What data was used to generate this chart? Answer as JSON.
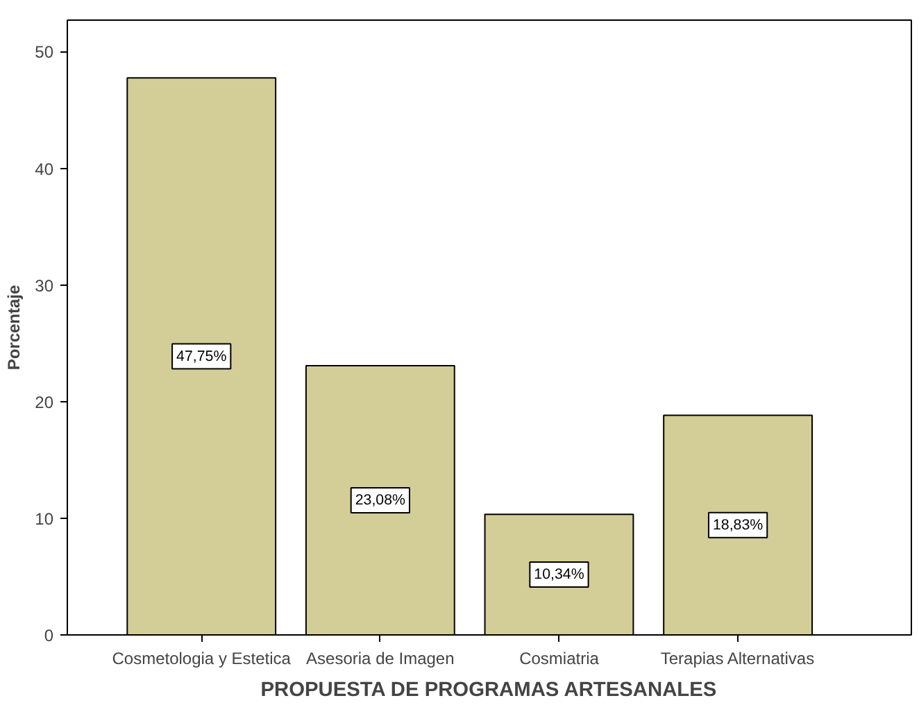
{
  "chart_data": {
    "type": "bar",
    "xlabel": "PROPUESTA DE PROGRAMAS ARTESANALES",
    "ylabel": "Porcentaje",
    "categories": [
      "Cosmetologia y Estetica",
      "Asesoria de Imagen",
      "Cosmiatria",
      "Terapias Alternativas"
    ],
    "values": [
      47.75,
      23.08,
      10.34,
      18.83
    ],
    "value_labels": [
      "47,75%",
      "23,08%",
      "10,34%",
      "18,83%"
    ],
    "color": "#d3ce97",
    "ylim": [
      0,
      52.7
    ],
    "yticks": [
      0,
      10,
      20,
      30,
      40,
      50
    ],
    "grid": false
  }
}
